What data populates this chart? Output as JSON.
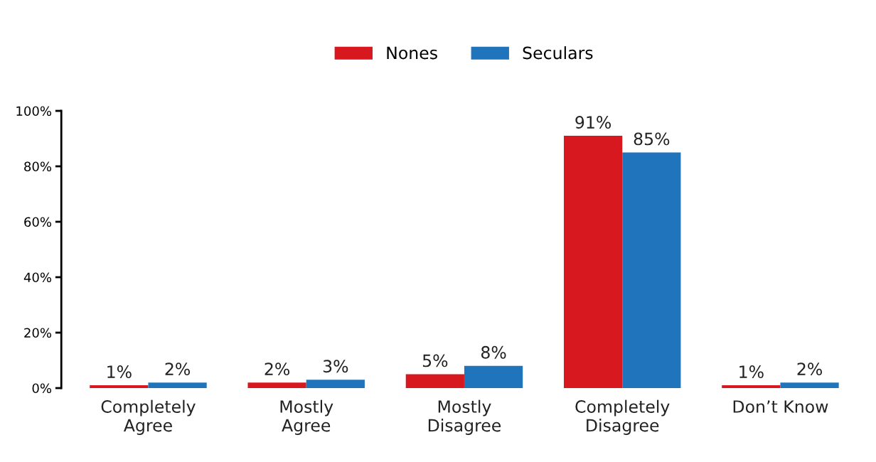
{
  "chart_data": {
    "type": "bar",
    "categories": [
      "Completely\nAgree",
      "Mostly\nAgree",
      "Mostly\nDisagree",
      "Completely\nDisagree",
      "Don’t Know"
    ],
    "series": [
      {
        "name": "Nones",
        "color": "#d7191f",
        "values": [
          1,
          2,
          5,
          91,
          1
        ],
        "value_labels": [
          "1%",
          "2%",
          "5%",
          "91%",
          "1%"
        ]
      },
      {
        "name": "Seculars",
        "color": "#1f74bb",
        "values": [
          2,
          3,
          8,
          85,
          2
        ],
        "value_labels": [
          "2%",
          "3%",
          "8%",
          "85%",
          "2%"
        ]
      }
    ],
    "ylim": [
      0,
      100
    ],
    "yticks": [
      {
        "value": 0,
        "label": "0%"
      },
      {
        "value": 20,
        "label": "20%"
      },
      {
        "value": 40,
        "label": "40%"
      },
      {
        "value": 60,
        "label": "60%"
      },
      {
        "value": 80,
        "label": "80%"
      },
      {
        "value": 100,
        "label": "100%"
      }
    ],
    "legend": "top",
    "grid": false
  }
}
